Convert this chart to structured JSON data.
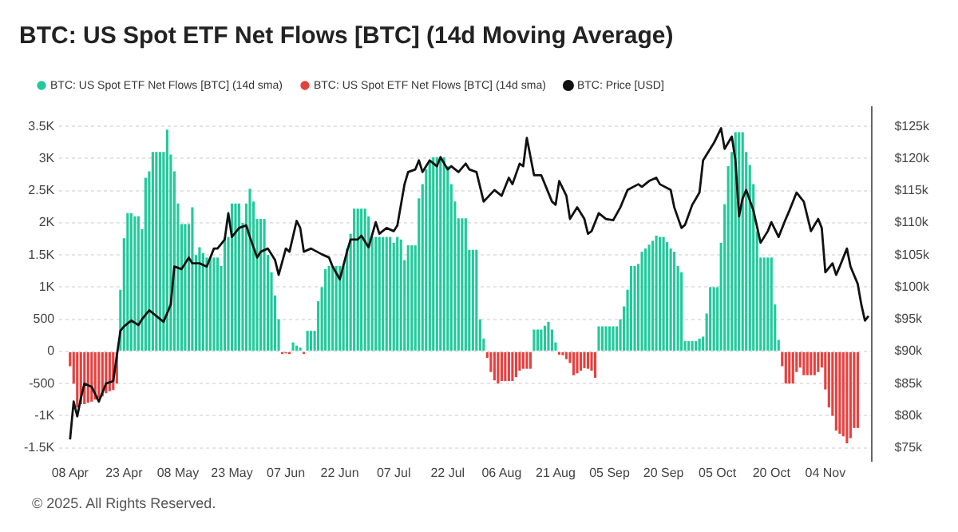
{
  "chart_data": {
    "type": "bar",
    "title": "BTC: US Spot ETF Net Flows [BTC] (14d Moving Average)",
    "x": [
      "2025-04-08",
      "2025-04-09",
      "2025-04-10",
      "2025-04-11",
      "2025-04-12",
      "2025-04-13",
      "2025-04-14",
      "2025-04-15",
      "2025-04-16",
      "2025-04-17",
      "2025-04-18",
      "2025-04-19",
      "2025-04-20",
      "2025-04-21",
      "2025-04-22",
      "2025-04-23",
      "2025-04-24",
      "2025-04-25",
      "2025-04-26",
      "2025-04-27",
      "2025-04-28",
      "2025-04-29",
      "2025-04-30",
      "2025-05-01",
      "2025-05-02",
      "2025-05-03",
      "2025-05-04",
      "2025-05-05",
      "2025-05-06",
      "2025-05-07",
      "2025-05-08",
      "2025-05-09",
      "2025-05-10",
      "2025-05-11",
      "2025-05-12",
      "2025-05-13",
      "2025-05-14",
      "2025-05-15",
      "2025-05-16",
      "2025-05-17",
      "2025-05-18",
      "2025-05-19",
      "2025-05-20",
      "2025-05-21",
      "2025-05-22",
      "2025-05-23",
      "2025-05-24",
      "2025-05-25",
      "2025-05-26",
      "2025-05-27",
      "2025-05-28",
      "2025-05-29",
      "2025-05-30",
      "2025-05-31",
      "2025-06-01",
      "2025-06-02",
      "2025-06-03",
      "2025-06-04",
      "2025-06-05",
      "2025-06-06",
      "2025-06-07",
      "2025-06-08",
      "2025-06-09",
      "2025-06-10",
      "2025-06-11",
      "2025-06-12",
      "2025-06-13",
      "2025-06-14",
      "2025-06-15",
      "2025-06-16",
      "2025-06-17",
      "2025-06-18",
      "2025-06-19",
      "2025-06-20",
      "2025-06-21",
      "2025-06-22",
      "2025-06-23",
      "2025-06-24",
      "2025-06-25",
      "2025-06-26",
      "2025-06-27",
      "2025-06-28",
      "2025-06-29",
      "2025-06-30",
      "2025-07-01",
      "2025-07-02",
      "2025-07-03",
      "2025-07-04",
      "2025-07-05",
      "2025-07-06",
      "2025-07-07",
      "2025-07-08",
      "2025-07-09",
      "2025-07-10",
      "2025-07-11",
      "2025-07-12",
      "2025-07-13",
      "2025-07-14",
      "2025-07-15",
      "2025-07-16",
      "2025-07-17",
      "2025-07-18",
      "2025-07-19",
      "2025-07-20",
      "2025-07-21",
      "2025-07-22",
      "2025-07-23",
      "2025-07-24",
      "2025-07-25",
      "2025-07-26",
      "2025-07-27",
      "2025-07-28",
      "2025-07-29",
      "2025-07-30",
      "2025-07-31",
      "2025-08-01",
      "2025-08-02",
      "2025-08-03",
      "2025-08-04",
      "2025-08-05",
      "2025-08-06",
      "2025-08-07",
      "2025-08-08",
      "2025-08-09",
      "2025-08-10",
      "2025-08-11",
      "2025-08-12",
      "2025-08-13",
      "2025-08-14",
      "2025-08-15",
      "2025-08-16",
      "2025-08-17",
      "2025-08-18",
      "2025-08-19",
      "2025-08-20",
      "2025-08-21",
      "2025-08-22",
      "2025-08-23",
      "2025-08-24",
      "2025-08-25",
      "2025-08-26",
      "2025-08-27",
      "2025-08-28",
      "2025-08-29",
      "2025-08-30",
      "2025-08-31",
      "2025-09-01",
      "2025-09-02",
      "2025-09-03",
      "2025-09-04",
      "2025-09-05",
      "2025-09-06",
      "2025-09-07",
      "2025-09-08",
      "2025-09-09",
      "2025-09-10",
      "2025-09-11",
      "2025-09-12",
      "2025-09-13",
      "2025-09-14",
      "2025-09-15",
      "2025-09-16",
      "2025-09-17",
      "2025-09-18",
      "2025-09-19",
      "2025-09-20",
      "2025-09-21",
      "2025-09-22",
      "2025-09-23",
      "2025-09-24",
      "2025-09-25",
      "2025-09-26",
      "2025-09-27",
      "2025-09-28",
      "2025-09-29",
      "2025-09-30",
      "2025-10-01",
      "2025-10-02",
      "2025-10-03",
      "2025-10-04",
      "2025-10-05",
      "2025-10-06",
      "2025-10-07",
      "2025-10-08",
      "2025-10-09",
      "2025-10-10",
      "2025-10-11",
      "2025-10-12",
      "2025-10-13",
      "2025-10-14",
      "2025-10-15",
      "2025-10-16",
      "2025-10-17",
      "2025-10-18",
      "2025-10-19",
      "2025-10-20",
      "2025-10-21",
      "2025-10-22",
      "2025-10-23",
      "2025-10-24",
      "2025-10-25",
      "2025-10-26",
      "2025-10-27",
      "2025-10-28",
      "2025-10-29",
      "2025-10-30",
      "2025-10-31",
      "2025-11-01",
      "2025-11-02",
      "2025-11-03",
      "2025-11-04",
      "2025-11-05",
      "2025-11-06",
      "2025-11-07",
      "2025-11-08",
      "2025-11-09",
      "2025-11-10",
      "2025-11-11",
      "2025-11-12",
      "2025-11-13"
    ],
    "series": [
      {
        "name": "BTC: US Spot ETF Net Flows [BTC] (14d sma)",
        "color": "#22c99c",
        "values": [
          null,
          null,
          null,
          null,
          null,
          null,
          null,
          null,
          null,
          null,
          null,
          null,
          null,
          null,
          960,
          1760,
          2150,
          2150,
          2100,
          2100,
          1900,
          2700,
          2800,
          3100,
          3100,
          3100,
          3100,
          3450,
          3060,
          2800,
          2300,
          1980,
          1980,
          1980,
          2240,
          1500,
          1620,
          1530,
          1460,
          1460,
          1460,
          1460,
          1330,
          1780,
          1780,
          2300,
          2300,
          2300,
          2000,
          2300,
          2530,
          2330,
          2060,
          2060,
          2060,
          1500,
          1230,
          870,
          500,
          null,
          null,
          null,
          140,
          90,
          60,
          null,
          320,
          320,
          320,
          780,
          1000,
          1280,
          1330,
          1330,
          1330,
          1330,
          1330,
          1600,
          1830,
          2220,
          2220,
          2220,
          2220,
          2100,
          1780,
          1780,
          1780,
          1780,
          1780,
          1780,
          1690,
          1780,
          1740,
          1420,
          1650,
          1650,
          1650,
          2380,
          2600,
          2830,
          2970,
          3020,
          3020,
          3020,
          3020,
          2880,
          2600,
          2330,
          2070,
          2070,
          2070,
          1580,
          1580,
          1580,
          500,
          200,
          null,
          null,
          null,
          null,
          null,
          null,
          null,
          null,
          null,
          null,
          null,
          null,
          null,
          340,
          340,
          340,
          400,
          460,
          340,
          140,
          null,
          null,
          null,
          null,
          null,
          null,
          null,
          null,
          null,
          null,
          null,
          390,
          390,
          390,
          390,
          390,
          390,
          500,
          700,
          960,
          1330,
          1330,
          1360,
          1550,
          1600,
          1660,
          1720,
          1800,
          1780,
          1780,
          1700,
          1600,
          1550,
          1330,
          1230,
          160,
          160,
          160,
          160,
          200,
          230,
          590,
          1000,
          1000,
          1000,
          1690,
          2290,
          2880,
          3100,
          3410,
          3410,
          3410,
          3100,
          2900,
          2600,
          1870,
          1460,
          1460,
          1460,
          1460,
          730,
          180,
          null,
          null,
          null,
          null,
          null,
          null,
          null,
          null,
          null,
          null,
          null,
          null,
          null,
          null,
          null,
          null,
          null,
          null,
          null,
          null,
          null,
          null
        ]
      },
      {
        "name": "BTC: US Spot ETF Net Flows [BTC] (14d sma)",
        "color": "#e5413f",
        "values": [
          -230,
          -500,
          -870,
          -820,
          -820,
          -800,
          -780,
          -750,
          -720,
          -700,
          -650,
          -620,
          -600,
          -500,
          null,
          null,
          null,
          null,
          null,
          null,
          null,
          null,
          null,
          null,
          null,
          null,
          null,
          null,
          null,
          null,
          null,
          null,
          null,
          null,
          null,
          null,
          null,
          null,
          null,
          null,
          null,
          null,
          null,
          null,
          null,
          null,
          null,
          null,
          null,
          null,
          null,
          null,
          null,
          null,
          null,
          null,
          null,
          null,
          null,
          -40,
          -30,
          -40,
          null,
          null,
          null,
          -40,
          null,
          null,
          null,
          null,
          null,
          null,
          null,
          null,
          null,
          null,
          null,
          null,
          null,
          null,
          null,
          null,
          null,
          null,
          null,
          null,
          null,
          null,
          null,
          null,
          null,
          null,
          null,
          null,
          null,
          null,
          null,
          null,
          null,
          null,
          null,
          null,
          null,
          null,
          null,
          null,
          null,
          null,
          null,
          null,
          null,
          null,
          null,
          null,
          null,
          null,
          -100,
          -320,
          -450,
          -500,
          -460,
          -460,
          -460,
          -460,
          -400,
          -300,
          -270,
          -270,
          -270,
          null,
          null,
          null,
          null,
          null,
          null,
          null,
          -50,
          -60,
          -120,
          -180,
          -370,
          -340,
          -300,
          -260,
          -270,
          -300,
          -410,
          null,
          null,
          null,
          null,
          null,
          null,
          null,
          null,
          null,
          null,
          null,
          null,
          null,
          null,
          null,
          null,
          null,
          null,
          null,
          null,
          null,
          null,
          null,
          null,
          null,
          null,
          null,
          null,
          null,
          null,
          null,
          null,
          null,
          null,
          null,
          null,
          null,
          null,
          null,
          null,
          null,
          null,
          null,
          null,
          null,
          null,
          null,
          null,
          null,
          null,
          null,
          -230,
          -500,
          -500,
          -500,
          -320,
          -250,
          -370,
          -370,
          -370,
          -370,
          -320,
          -250,
          -590,
          -870,
          -1000,
          -1230,
          -1280,
          -1320,
          -1430,
          -1350,
          -1190,
          -1190
        ]
      },
      {
        "type": "line",
        "name": "BTC: Price [USD]",
        "color": "#111111",
        "axis": "y2",
        "x": [
          "2025-04-08",
          "2025-04-09",
          "2025-04-10",
          "2025-04-11",
          "2025-04-12",
          "2025-04-14",
          "2025-04-16",
          "2025-04-18",
          "2025-04-20",
          "2025-04-22",
          "2025-04-23",
          "2025-04-25",
          "2025-04-27",
          "2025-04-28",
          "2025-04-30",
          "2025-05-02",
          "2025-05-04",
          "2025-05-06",
          "2025-05-07",
          "2025-05-09",
          "2025-05-11",
          "2025-05-12",
          "2025-05-14",
          "2025-05-16",
          "2025-05-18",
          "2025-05-19",
          "2025-05-21",
          "2025-05-22",
          "2025-05-23",
          "2025-05-25",
          "2025-05-27",
          "2025-05-28",
          "2025-05-30",
          "2025-05-31",
          "2025-06-02",
          "2025-06-04",
          "2025-06-05",
          "2025-06-07",
          "2025-06-08",
          "2025-06-10",
          "2025-06-11",
          "2025-06-12",
          "2025-06-14",
          "2025-06-17",
          "2025-06-19",
          "2025-06-20",
          "2025-06-22",
          "2025-06-24",
          "2025-06-25",
          "2025-06-27",
          "2025-06-28",
          "2025-06-30",
          "2025-07-02",
          "2025-07-03",
          "2025-07-05",
          "2025-07-07",
          "2025-07-08",
          "2025-07-10",
          "2025-07-11",
          "2025-07-13",
          "2025-07-14",
          "2025-07-15",
          "2025-07-17",
          "2025-07-19",
          "2025-07-20",
          "2025-07-22",
          "2025-07-23",
          "2025-07-25",
          "2025-07-27",
          "2025-07-28",
          "2025-07-30",
          "2025-08-01",
          "2025-08-04",
          "2025-08-06",
          "2025-08-08",
          "2025-08-09",
          "2025-08-11",
          "2025-08-12",
          "2025-08-13",
          "2025-08-15",
          "2025-08-17",
          "2025-08-20",
          "2025-08-21",
          "2025-08-22",
          "2025-08-24",
          "2025-08-25",
          "2025-08-27",
          "2025-08-29",
          "2025-08-30",
          "2025-08-31",
          "2025-09-02",
          "2025-09-04",
          "2025-09-06",
          "2025-09-08",
          "2025-09-10",
          "2025-09-13",
          "2025-09-14",
          "2025-09-16",
          "2025-09-18",
          "2025-09-19",
          "2025-09-22",
          "2025-09-23",
          "2025-09-25",
          "2025-09-26",
          "2025-09-28",
          "2025-09-30",
          "2025-10-01",
          "2025-10-04",
          "2025-10-06",
          "2025-10-07",
          "2025-10-09",
          "2025-10-10",
          "2025-10-11",
          "2025-10-12",
          "2025-10-13",
          "2025-10-15",
          "2025-10-17",
          "2025-10-19",
          "2025-10-20",
          "2025-10-22",
          "2025-10-24",
          "2025-10-25",
          "2025-10-27",
          "2025-10-29",
          "2025-10-31",
          "2025-11-02",
          "2025-11-03",
          "2025-11-04",
          "2025-11-06",
          "2025-11-07",
          "2025-11-08",
          "2025-11-09",
          "2025-11-10",
          "2025-11-11",
          "2025-11-13",
          "2025-11-14",
          "2025-11-15",
          "2025-11-16"
        ],
        "values": [
          76300,
          82200,
          79900,
          82700,
          85000,
          84500,
          82200,
          85000,
          85400,
          93200,
          93900,
          94800,
          94100,
          95000,
          96400,
          95500,
          94600,
          97300,
          103200,
          102800,
          104600,
          103700,
          103700,
          103200,
          106000,
          106000,
          107400,
          111500,
          107800,
          109200,
          109600,
          107800,
          104600,
          105500,
          106000,
          104200,
          101900,
          106000,
          105500,
          110300,
          109200,
          105500,
          106000,
          105100,
          104600,
          103200,
          101200,
          105500,
          107400,
          107400,
          108000,
          106200,
          110100,
          108300,
          109200,
          108700,
          109600,
          116000,
          117900,
          118300,
          119700,
          117900,
          119700,
          118800,
          120200,
          118300,
          118800,
          117900,
          119200,
          118300,
          117900,
          113300,
          115100,
          114200,
          117000,
          116000,
          119200,
          118800,
          123200,
          117400,
          117400,
          113300,
          112800,
          116500,
          114200,
          110600,
          112400,
          110600,
          108300,
          108700,
          111500,
          110600,
          110400,
          112400,
          115100,
          116000,
          115600,
          116500,
          117000,
          116000,
          115100,
          112400,
          109200,
          109700,
          112800,
          114700,
          119700,
          122400,
          124700,
          121500,
          123400,
          119700,
          111000,
          113800,
          115100,
          111900,
          106900,
          108700,
          110100,
          107800,
          110600,
          111900,
          114700,
          113300,
          108700,
          110600,
          109200,
          102300,
          103700,
          101900,
          103200,
          104600,
          106000,
          103200,
          100500,
          97300,
          94800,
          95500
        ]
      }
    ],
    "xlim": [
      "2025-04-05",
      "2025-11-17"
    ],
    "xticks": [
      {
        "value": "2025-04-08",
        "label": "08 Apr"
      },
      {
        "value": "2025-04-23",
        "label": "23 Apr"
      },
      {
        "value": "2025-05-08",
        "label": "08 May"
      },
      {
        "value": "2025-05-23",
        "label": "23 May"
      },
      {
        "value": "2025-06-07",
        "label": "07 Jun"
      },
      {
        "value": "2025-06-22",
        "label": "22 Jun"
      },
      {
        "value": "2025-07-07",
        "label": "07 Jul"
      },
      {
        "value": "2025-07-22",
        "label": "22 Jul"
      },
      {
        "value": "2025-08-06",
        "label": "06 Aug"
      },
      {
        "value": "2025-08-21",
        "label": "21 Aug"
      },
      {
        "value": "2025-09-05",
        "label": "05 Sep"
      },
      {
        "value": "2025-09-20",
        "label": "20 Sep"
      },
      {
        "value": "2025-10-05",
        "label": "05 Oct"
      },
      {
        "value": "2025-10-20",
        "label": "20 Oct"
      },
      {
        "value": "2025-11-04",
        "label": "04 Nov"
      }
    ],
    "ylim": [
      -1700,
      3800
    ],
    "yticks": [
      {
        "value": -1500,
        "label": "-1.5K"
      },
      {
        "value": -1000,
        "label": "-1K"
      },
      -500,
      0,
      500,
      {
        "value": 1000,
        "label": "1K"
      },
      {
        "value": 1500,
        "label": "1.5K"
      },
      {
        "value": 2000,
        "label": "2K"
      },
      {
        "value": 2500,
        "label": "2.5K"
      },
      {
        "value": 3000,
        "label": "3K"
      },
      {
        "value": 3500,
        "label": "3.5K"
      }
    ],
    "y2lim": [
      73000,
      128000
    ],
    "y2ticks": [
      {
        "value": 75000,
        "label": "$75k"
      },
      {
        "value": 80000,
        "label": "$80k"
      },
      {
        "value": 85000,
        "label": "$85k"
      },
      {
        "value": 90000,
        "label": "$90k"
      },
      {
        "value": 95000,
        "label": "$95k"
      },
      {
        "value": 100000,
        "label": "$100k"
      },
      {
        "value": 105000,
        "label": "$105k"
      },
      {
        "value": 110000,
        "label": "$110k"
      },
      {
        "value": 115000,
        "label": "$115k"
      },
      {
        "value": 120000,
        "label": "$120k"
      },
      {
        "value": 125000,
        "label": "$125k"
      }
    ],
    "grid": "y",
    "legend": "top left",
    "annotations": [
      "© 2025. All Rights Reserved."
    ]
  }
}
